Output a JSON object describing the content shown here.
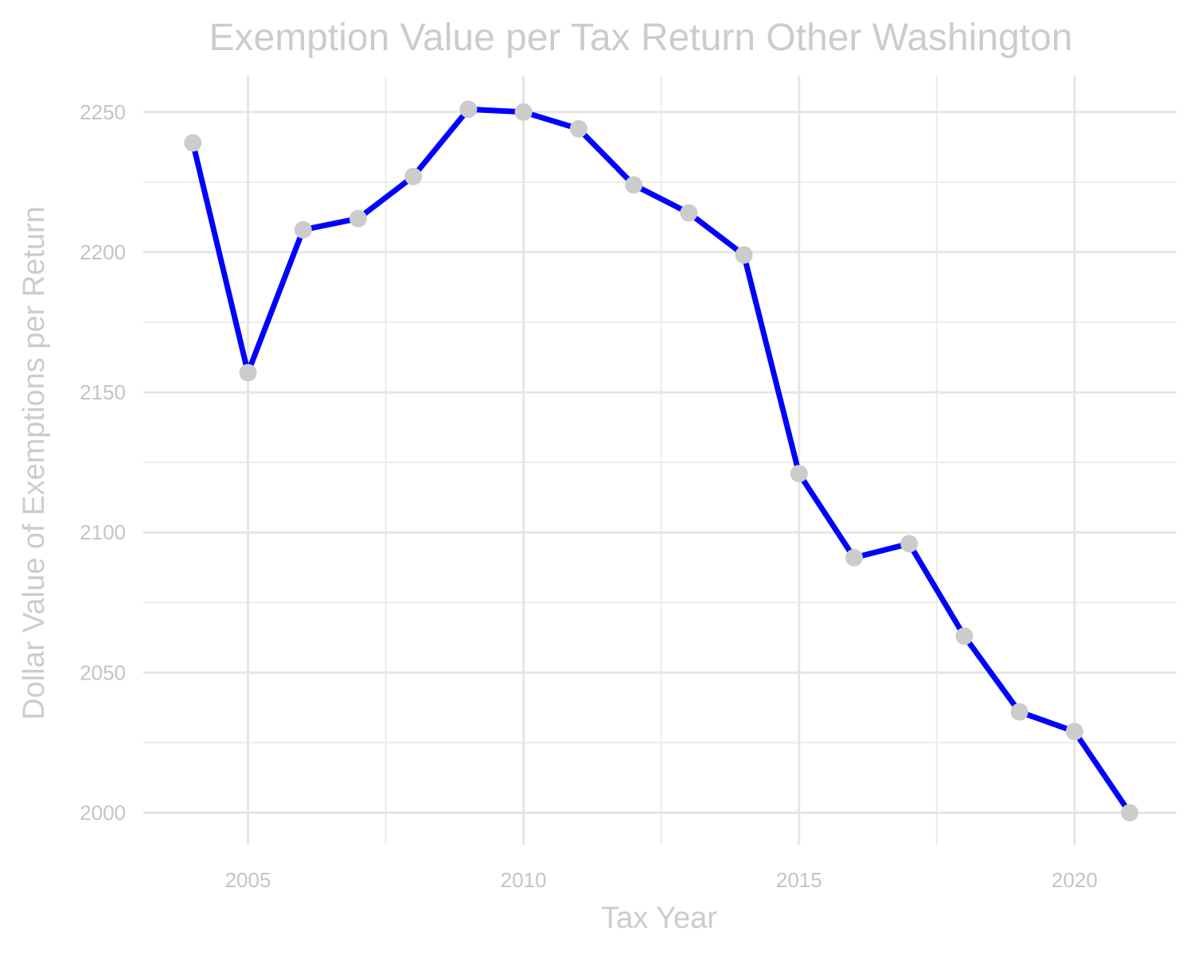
{
  "chart_data": {
    "type": "line",
    "title": "Exemption Value per Tax Return Other Washington",
    "xlabel": "Tax Year",
    "ylabel": "Dollar Value of Exemptions per Return",
    "x": [
      2004,
      2005,
      2006,
      2007,
      2008,
      2009,
      2010,
      2011,
      2012,
      2013,
      2014,
      2015,
      2016,
      2017,
      2018,
      2019,
      2020,
      2021
    ],
    "series": [
      {
        "values": [
          2239,
          2157,
          2208,
          2212,
          2227,
          2251,
          2250,
          2244,
          2224,
          2214,
          2199,
          2121,
          2091,
          2096,
          2063,
          2036,
          2029,
          2000
        ]
      }
    ],
    "xlim": [
      2003.1,
      2021.85
    ],
    "ylim": [
      1988.5,
      2263
    ],
    "x_ticks": [
      2005,
      2010,
      2015,
      2020
    ],
    "x_tick_labels": [
      "2005",
      "2010",
      "2015",
      "2020"
    ],
    "y_ticks": [
      2000,
      2050,
      2100,
      2150,
      2200,
      2250
    ],
    "y_tick_labels": [
      "2000",
      "2050",
      "2100",
      "2150",
      "2200",
      "2250"
    ],
    "grid": true,
    "legend": "none",
    "colors": {
      "line": "#0000ff",
      "points": "#cccccc",
      "text": "#cccccc",
      "grid": "#e6e6e6"
    }
  }
}
